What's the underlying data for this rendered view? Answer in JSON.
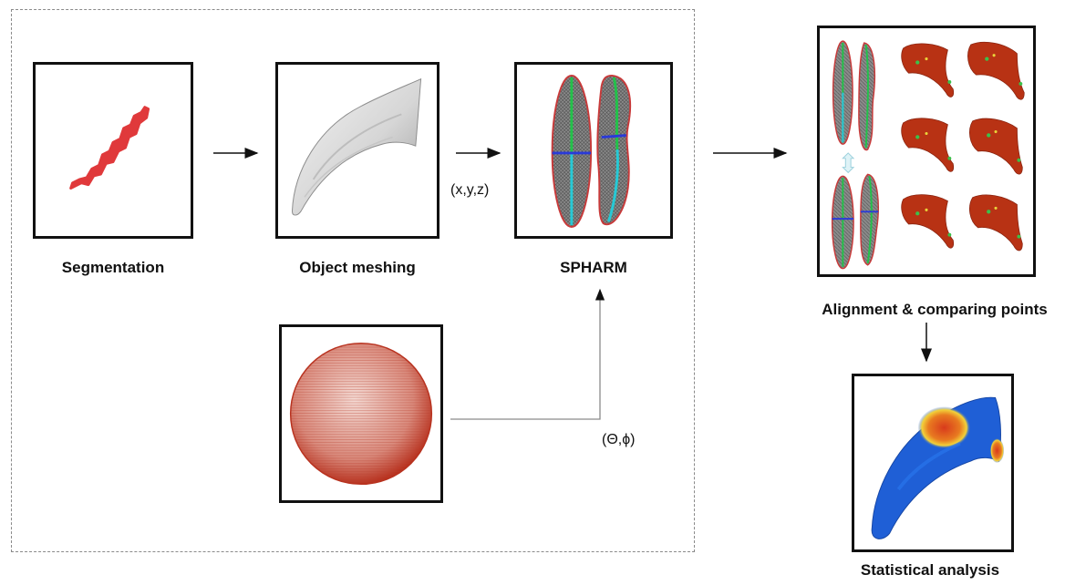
{
  "labels": {
    "segmentation": "Segmentation",
    "object_meshing": "Object meshing",
    "spharm": "SPHARM",
    "alignment": "Alignment & comparing points",
    "statistical": "Statistical analysis"
  },
  "coords": {
    "cartesian": "(x,y,z)",
    "spherical": "(Θ,ϕ)"
  },
  "colors": {
    "segmentation_red": "#e0393b",
    "mesh_gray": "#d8d8d8",
    "sphere_red": "#c8463a",
    "surface_red": "#b83214",
    "heat_blue": "#1f5fd6",
    "heat_red": "#d83a1c"
  }
}
